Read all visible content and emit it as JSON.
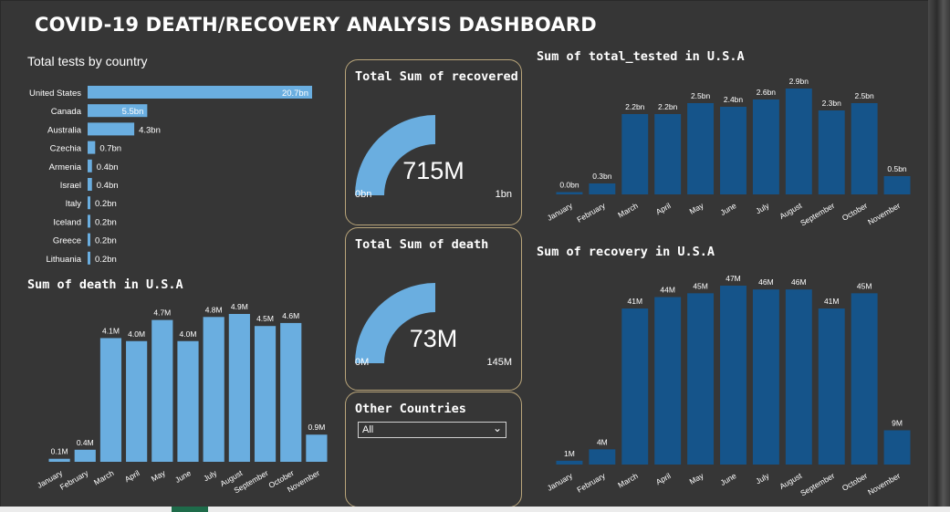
{
  "dashboard": {
    "title": "COVID-19 DEATH/RECOVERY ANALYSIS DASHBOARD"
  },
  "colors": {
    "light_bar": "#6aaee0",
    "dark_bar": "#15548a",
    "card_border": "#b9a57a",
    "background": "#363636"
  },
  "filter": {
    "title": "Other Countries",
    "selected": "All",
    "icon": "chevron-down-icon"
  },
  "chart_data": [
    {
      "id": "tests_by_country",
      "type": "bar",
      "orientation": "horizontal",
      "title": "Total tests by country",
      "categories": [
        "United States",
        "Canada",
        "Australia",
        "Czechia",
        "Armenia",
        "Israel",
        "Italy",
        "Iceland",
        "Greece",
        "Lithuania"
      ],
      "values": [
        20.7,
        5.5,
        4.3,
        0.7,
        0.4,
        0.4,
        0.2,
        0.2,
        0.2,
        0.2
      ],
      "labels": [
        "20.7bn",
        "5.5bn",
        "4.3bn",
        "0.7bn",
        "0.4bn",
        "0.4bn",
        "0.2bn",
        "0.2bn",
        "0.2bn",
        "0.2bn"
      ],
      "unit": "bn"
    },
    {
      "id": "death_usa",
      "type": "bar",
      "title": "Sum of death in U.S.A",
      "categories": [
        "January",
        "February",
        "March",
        "April",
        "May",
        "June",
        "July",
        "August",
        "September",
        "October",
        "November"
      ],
      "values": [
        0.1,
        0.4,
        4.1,
        4.0,
        4.7,
        4.0,
        4.8,
        4.9,
        4.5,
        4.6,
        0.9
      ],
      "labels": [
        "0.1M",
        "0.4M",
        "4.1M",
        "4.0M",
        "4.7M",
        "4.0M",
        "4.8M",
        "4.9M",
        "4.5M",
        "4.6M",
        "0.9M"
      ],
      "unit": "M"
    },
    {
      "id": "recovered_gauge",
      "type": "gauge",
      "title": "Total Sum of recovered",
      "value": 715,
      "value_label": "715M",
      "min_label": "0bn",
      "max_label": "1bn",
      "fraction": 0.5
    },
    {
      "id": "death_gauge",
      "type": "gauge",
      "title": "Total Sum of death",
      "value": 73,
      "value_label": "73M",
      "min_label": "0M",
      "max_label": "145M",
      "fraction": 0.5
    },
    {
      "id": "tested_usa",
      "type": "bar",
      "title": "Sum of total_tested in U.S.A",
      "categories": [
        "January",
        "February",
        "March",
        "April",
        "May",
        "June",
        "July",
        "August",
        "September",
        "October",
        "November"
      ],
      "values": [
        0.0,
        0.3,
        2.2,
        2.2,
        2.5,
        2.4,
        2.6,
        2.9,
        2.3,
        2.5,
        0.5
      ],
      "labels": [
        "0.0bn",
        "0.3bn",
        "2.2bn",
        "2.2bn",
        "2.5bn",
        "2.4bn",
        "2.6bn",
        "2.9bn",
        "2.3bn",
        "2.5bn",
        "0.5bn"
      ],
      "unit": "bn"
    },
    {
      "id": "recovery_usa",
      "type": "bar",
      "title": "Sum of recovery in U.S.A",
      "categories": [
        "January",
        "February",
        "March",
        "April",
        "May",
        "June",
        "July",
        "August",
        "September",
        "October",
        "November"
      ],
      "values": [
        1,
        4,
        41,
        44,
        45,
        47,
        46,
        46,
        41,
        45,
        9
      ],
      "labels": [
        "1M",
        "4M",
        "41M",
        "44M",
        "45M",
        "47M",
        "46M",
        "46M",
        "41M",
        "45M",
        "9M"
      ],
      "unit": "M"
    }
  ]
}
